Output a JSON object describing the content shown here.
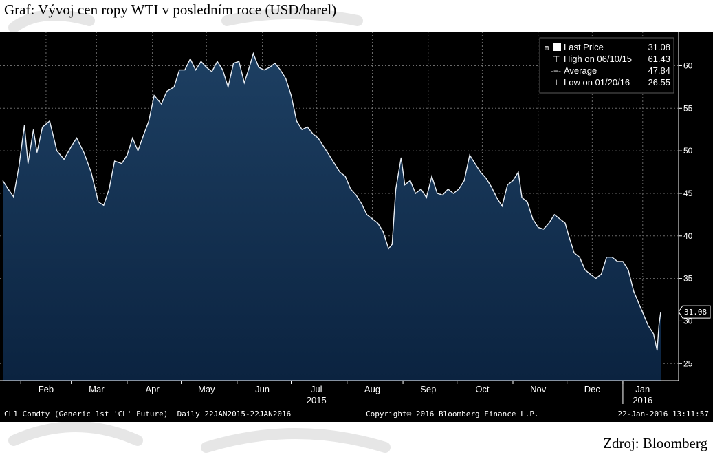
{
  "page": {
    "title": "Graf: Vývoj cen ropy WTI v posledním roce (USD/barel)",
    "source": "Zdroj: Bloomberg"
  },
  "footer": {
    "left": "CL1 Comdty (Generic 1st 'CL' Future)  Daily 22JAN2015-22JAN2016",
    "center": "Copyright© 2016 Bloomberg Finance L.P.",
    "right": "22-Jan-2016 13:11:57"
  },
  "legend": {
    "items": [
      {
        "label": "Last Price",
        "value": "31.08"
      },
      {
        "label": "High on 06/10/15",
        "value": "61.43"
      },
      {
        "label": "Average",
        "value": "47.84"
      },
      {
        "label": "Low on 01/20/16",
        "value": "26.55"
      }
    ]
  },
  "colors": {
    "panel_bg": "#000000",
    "area_top": "#1d3f62",
    "area_bottom": "#0b2340",
    "line": "#e8eef5",
    "grid": "#6b6b6b",
    "text": "#ffffff"
  },
  "chart_data": {
    "type": "area",
    "title": "Graf: Vývoj cen ropy WTI v posledním roce (USD/barel)",
    "xlabel": "",
    "ylabel": "",
    "x_range": [
      "2015-01-22",
      "2016-01-22"
    ],
    "ylim": [
      23,
      64
    ],
    "y_ticks": [
      25,
      30,
      35,
      40,
      45,
      50,
      55,
      60
    ],
    "x_ticks": [
      {
        "date": "2015-02-15",
        "label": "Feb"
      },
      {
        "date": "2015-03-15",
        "label": "Mar"
      },
      {
        "date": "2015-04-15",
        "label": "Apr"
      },
      {
        "date": "2015-05-15",
        "label": "May"
      },
      {
        "date": "2015-06-15",
        "label": "Jun"
      },
      {
        "date": "2015-07-15",
        "label": "Jul",
        "sub": "2015"
      },
      {
        "date": "2015-08-15",
        "label": "Aug"
      },
      {
        "date": "2015-09-15",
        "label": "Sep"
      },
      {
        "date": "2015-10-15",
        "label": "Oct"
      },
      {
        "date": "2015-11-15",
        "label": "Nov"
      },
      {
        "date": "2015-12-15",
        "label": "Dec"
      },
      {
        "date": "2016-01-12",
        "label": "Jan",
        "sub": "2016"
      }
    ],
    "grid": true,
    "legend_position": "top-right",
    "last_price_label": "31.08",
    "series": [
      {
        "name": "Last Price",
        "points": [
          [
            "2015-01-22",
            46.5
          ],
          [
            "2015-01-25",
            45.5
          ],
          [
            "2015-01-28",
            44.6
          ],
          [
            "2015-01-31",
            48.2
          ],
          [
            "2015-02-03",
            53.0
          ],
          [
            "2015-02-05",
            48.5
          ],
          [
            "2015-02-08",
            52.5
          ],
          [
            "2015-02-10",
            49.8
          ],
          [
            "2015-02-13",
            52.8
          ],
          [
            "2015-02-17",
            53.5
          ],
          [
            "2015-02-21",
            50.0
          ],
          [
            "2015-02-25",
            49.0
          ],
          [
            "2015-03-01",
            50.5
          ],
          [
            "2015-03-04",
            51.5
          ],
          [
            "2015-03-08",
            49.8
          ],
          [
            "2015-03-12",
            47.5
          ],
          [
            "2015-03-16",
            44.0
          ],
          [
            "2015-03-19",
            43.6
          ],
          [
            "2015-03-22",
            45.5
          ],
          [
            "2015-03-25",
            48.8
          ],
          [
            "2015-03-29",
            48.5
          ],
          [
            "2015-04-01",
            49.5
          ],
          [
            "2015-04-04",
            51.5
          ],
          [
            "2015-04-07",
            50.0
          ],
          [
            "2015-04-10",
            51.8
          ],
          [
            "2015-04-13",
            53.5
          ],
          [
            "2015-04-16",
            56.5
          ],
          [
            "2015-04-20",
            55.5
          ],
          [
            "2015-04-23",
            57.0
          ],
          [
            "2015-04-27",
            57.5
          ],
          [
            "2015-04-30",
            59.5
          ],
          [
            "2015-05-03",
            59.5
          ],
          [
            "2015-05-06",
            60.8
          ],
          [
            "2015-05-09",
            59.5
          ],
          [
            "2015-05-12",
            60.5
          ],
          [
            "2015-05-15",
            59.8
          ],
          [
            "2015-05-18",
            59.3
          ],
          [
            "2015-05-21",
            60.5
          ],
          [
            "2015-05-24",
            59.5
          ],
          [
            "2015-05-27",
            57.5
          ],
          [
            "2015-05-30",
            60.3
          ],
          [
            "2015-06-02",
            60.5
          ],
          [
            "2015-06-05",
            58.0
          ],
          [
            "2015-06-08",
            60.0
          ],
          [
            "2015-06-10",
            61.43
          ],
          [
            "2015-06-13",
            59.8
          ],
          [
            "2015-06-16",
            59.5
          ],
          [
            "2015-06-19",
            59.8
          ],
          [
            "2015-06-22",
            60.3
          ],
          [
            "2015-06-25",
            59.5
          ],
          [
            "2015-06-28",
            58.5
          ],
          [
            "2015-07-01",
            56.5
          ],
          [
            "2015-07-04",
            53.5
          ],
          [
            "2015-07-07",
            52.5
          ],
          [
            "2015-07-10",
            52.8
          ],
          [
            "2015-07-13",
            52.0
          ],
          [
            "2015-07-16",
            51.5
          ],
          [
            "2015-07-19",
            50.5
          ],
          [
            "2015-07-22",
            49.5
          ],
          [
            "2015-07-25",
            48.5
          ],
          [
            "2015-07-28",
            47.5
          ],
          [
            "2015-07-31",
            47.0
          ],
          [
            "2015-08-03",
            45.5
          ],
          [
            "2015-08-06",
            44.8
          ],
          [
            "2015-08-09",
            43.8
          ],
          [
            "2015-08-12",
            42.5
          ],
          [
            "2015-08-15",
            42.0
          ],
          [
            "2015-08-18",
            41.5
          ],
          [
            "2015-08-21",
            40.5
          ],
          [
            "2015-08-24",
            38.5
          ],
          [
            "2015-08-26",
            39.0
          ],
          [
            "2015-08-28",
            45.5
          ],
          [
            "2015-08-31",
            49.2
          ],
          [
            "2015-09-02",
            46.0
          ],
          [
            "2015-09-05",
            46.5
          ],
          [
            "2015-09-08",
            45.0
          ],
          [
            "2015-09-11",
            45.5
          ],
          [
            "2015-09-14",
            44.5
          ],
          [
            "2015-09-17",
            47.0
          ],
          [
            "2015-09-20",
            45.0
          ],
          [
            "2015-09-23",
            44.8
          ],
          [
            "2015-09-26",
            45.5
          ],
          [
            "2015-09-29",
            45.0
          ],
          [
            "2015-10-02",
            45.5
          ],
          [
            "2015-10-05",
            46.5
          ],
          [
            "2015-10-08",
            49.5
          ],
          [
            "2015-10-11",
            48.5
          ],
          [
            "2015-10-14",
            47.5
          ],
          [
            "2015-10-17",
            46.8
          ],
          [
            "2015-10-20",
            45.8
          ],
          [
            "2015-10-23",
            44.5
          ],
          [
            "2015-10-26",
            43.5
          ],
          [
            "2015-10-29",
            46.0
          ],
          [
            "2015-11-01",
            46.5
          ],
          [
            "2015-11-04",
            47.5
          ],
          [
            "2015-11-06",
            44.5
          ],
          [
            "2015-11-09",
            44.0
          ],
          [
            "2015-11-12",
            42.0
          ],
          [
            "2015-11-15",
            41.0
          ],
          [
            "2015-11-18",
            40.8
          ],
          [
            "2015-11-21",
            41.5
          ],
          [
            "2015-11-24",
            42.5
          ],
          [
            "2015-11-27",
            42.0
          ],
          [
            "2015-11-30",
            41.5
          ],
          [
            "2015-12-02",
            40.0
          ],
          [
            "2015-12-05",
            38.0
          ],
          [
            "2015-12-08",
            37.5
          ],
          [
            "2015-12-11",
            36.0
          ],
          [
            "2015-12-14",
            35.5
          ],
          [
            "2015-12-17",
            35.0
          ],
          [
            "2015-12-20",
            35.5
          ],
          [
            "2015-12-23",
            37.5
          ],
          [
            "2015-12-26",
            37.5
          ],
          [
            "2015-12-29",
            37.0
          ],
          [
            "2016-01-01",
            37.0
          ],
          [
            "2016-01-04",
            36.0
          ],
          [
            "2016-01-07",
            33.5
          ],
          [
            "2016-01-10",
            32.0
          ],
          [
            "2016-01-13",
            30.5
          ],
          [
            "2016-01-15",
            29.5
          ],
          [
            "2016-01-18",
            28.5
          ],
          [
            "2016-01-20",
            26.55
          ],
          [
            "2016-01-21",
            29.5
          ],
          [
            "2016-01-22",
            31.08
          ]
        ]
      }
    ]
  }
}
